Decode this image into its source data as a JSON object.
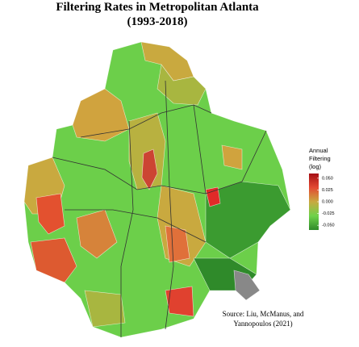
{
  "title": [
    "Filtering Rates in Metropolitan Atlanta",
    "(1993-2018)"
  ],
  "legend": {
    "title": [
      "Annual",
      "Filtering",
      "(log)"
    ],
    "limits": [
      0.06,
      -0.06
    ],
    "colors": [
      "#a50f15",
      "#e34a33",
      "#c9a93f",
      "#6fd24a",
      "#2f8a2a"
    ],
    "ticks": [
      {
        "value": 0.05,
        "label": "0.050"
      },
      {
        "value": 0.025,
        "label": "0.025"
      },
      {
        "value": 0,
        "label": "0.000"
      },
      {
        "value": -0.025,
        "label": "-0.025"
      },
      {
        "value": -0.05,
        "label": "-0.050"
      }
    ]
  },
  "source": [
    "Source: Liu, McManus, and",
    "Yannopoulos (2021)"
  ]
}
